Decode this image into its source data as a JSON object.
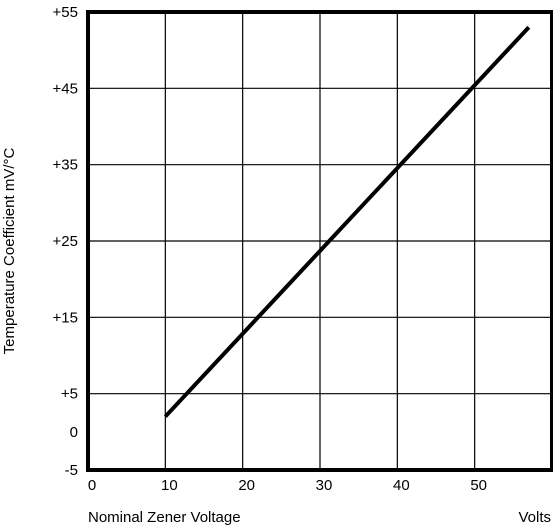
{
  "chart_data": {
    "type": "line",
    "title": "",
    "xlabel": "Nominal Zener Voltage",
    "xunit": "Volts",
    "ylabel": "Temperature Coefficient mV/°C",
    "xlim": [
      0,
      60
    ],
    "ylim": [
      -5,
      55
    ],
    "x_ticks": [
      {
        "value": 0,
        "label": "0"
      },
      {
        "value": 10,
        "label": "10"
      },
      {
        "value": 20,
        "label": "20"
      },
      {
        "value": 30,
        "label": "30"
      },
      {
        "value": 40,
        "label": "40"
      },
      {
        "value": 50,
        "label": "50"
      }
    ],
    "y_ticks": [
      {
        "value": 55,
        "label": "+55"
      },
      {
        "value": 45,
        "label": "+45"
      },
      {
        "value": 35,
        "label": "+35"
      },
      {
        "value": 25,
        "label": "+25"
      },
      {
        "value": 15,
        "label": "+15"
      },
      {
        "value": 5,
        "label": "+5"
      },
      {
        "value": 0,
        "label": "0"
      },
      {
        "value": -5,
        "label": "-5"
      }
    ],
    "x_gridlines": [
      0,
      10,
      20,
      30,
      40,
      50,
      60
    ],
    "y_gridlines": [
      55,
      45,
      35,
      25,
      15,
      5,
      -5
    ],
    "grid": true,
    "series": [
      {
        "x": [
          10,
          57
        ],
        "y": [
          2,
          53
        ]
      }
    ]
  }
}
